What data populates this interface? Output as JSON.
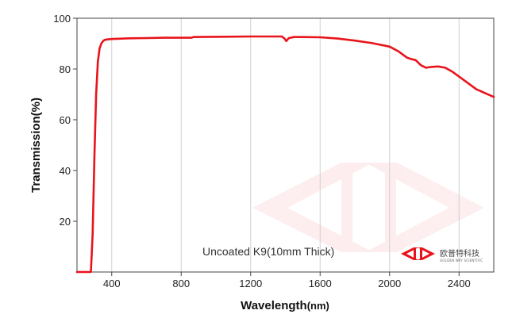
{
  "chart_data": {
    "type": "line",
    "xlabel": "Wavelength",
    "xlabel_unit": "(nm)",
    "ylabel": "Transmission(%)",
    "xlim": [
      200,
      2600
    ],
    "ylim": [
      0,
      100
    ],
    "x_ticks": [
      400,
      800,
      1200,
      1600,
      2000,
      2400
    ],
    "y_ticks": [
      20,
      40,
      60,
      80,
      100
    ],
    "grid": "vertical",
    "annotation": "Uncoated K9(10mm Thick)",
    "line_color": "#e8141b",
    "series": [
      {
        "x": [
          200,
          280,
          290,
          300,
          310,
          320,
          330,
          340,
          350,
          360,
          380,
          400,
          500,
          600,
          700,
          860,
          870,
          1000,
          1200,
          1380,
          1395,
          1405,
          1420,
          1450,
          1500,
          1600,
          1700,
          1800,
          1900,
          2000,
          2050,
          2100,
          2120,
          2150,
          2180,
          2210,
          2240,
          2280,
          2320,
          2360,
          2400,
          2450,
          2500,
          2550,
          2600
        ],
        "y": [
          0,
          0,
          15,
          45,
          70,
          83,
          88,
          90,
          91,
          91.5,
          91.7,
          91.8,
          92.1,
          92.2,
          92.3,
          92.3,
          92.6,
          92.7,
          92.8,
          92.8,
          92.0,
          91.0,
          92.2,
          92.6,
          92.6,
          92.5,
          92.0,
          91.2,
          90.2,
          88.8,
          87.0,
          84.5,
          84.0,
          83.5,
          81.5,
          80.5,
          80.8,
          81.0,
          80.5,
          79.0,
          77.0,
          74.5,
          72.0,
          70.5,
          69.0
        ]
      }
    ]
  },
  "brand": {
    "name_cn": "欧普特科技",
    "name_en": "GOLDEN WAY SCIENTIFIC",
    "logo_color": "#e8141b"
  }
}
